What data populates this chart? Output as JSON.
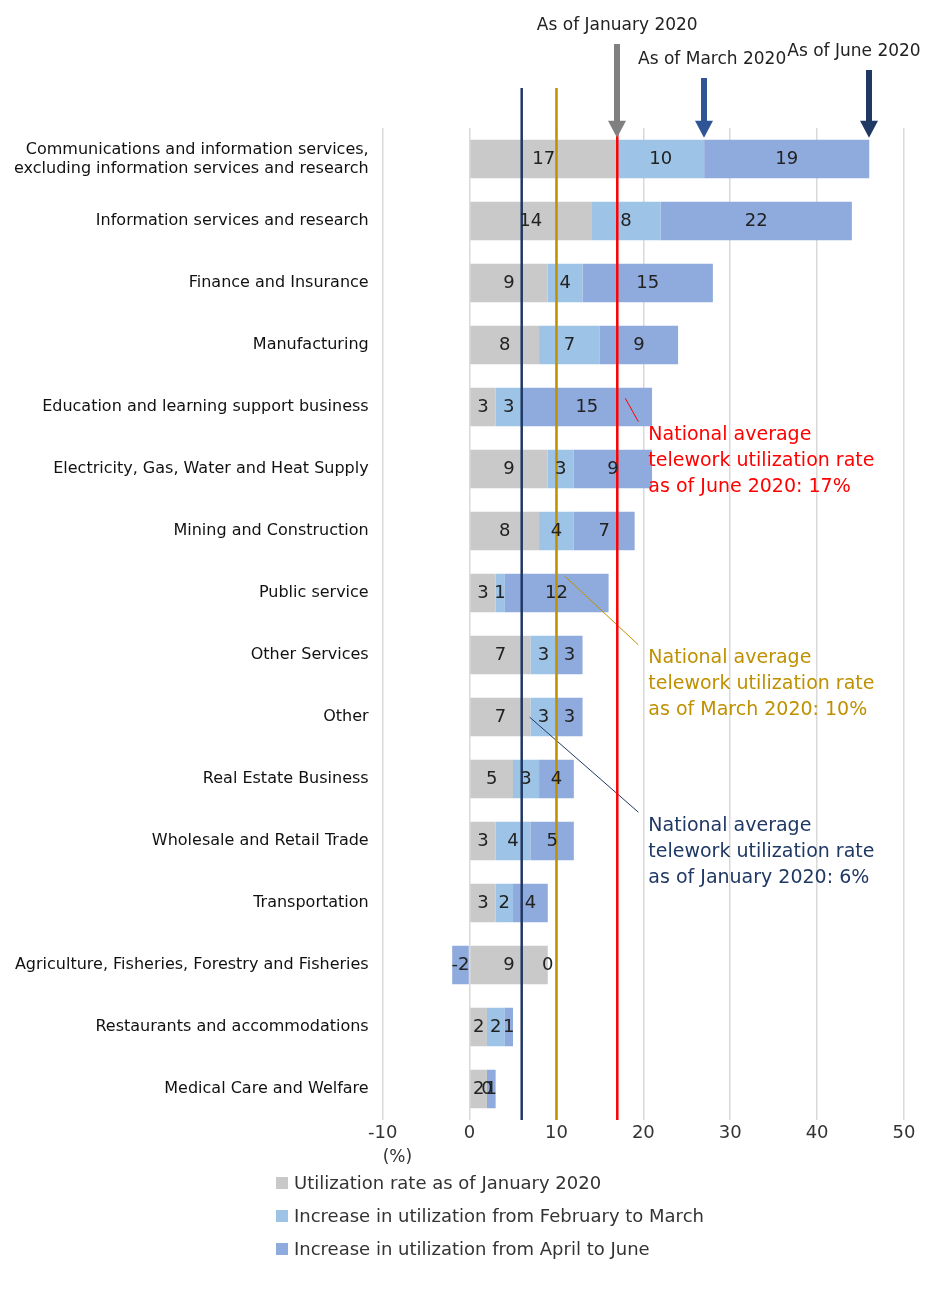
{
  "chart_data": {
    "type": "bar",
    "orientation": "horizontal",
    "stacked": true,
    "data_labels": true,
    "grid": "x",
    "legend": "bottom",
    "xlabel": "(%)",
    "categories": [
      "Communications and information services, excluding information services and research",
      "Information services and research",
      "Finance and Insurance",
      "Manufacturing",
      "Education and learning support business",
      "Electricity, Gas, Water and Heat Supply",
      "Mining and Construction",
      "Public service",
      "Other Services",
      "Other",
      "Real Estate Business",
      "Wholesale and Retail Trade",
      "Transportation",
      "Agriculture, Fisheries, Forestry and Fisheries",
      "Restaurants and accommodations",
      "Medical Care and Welfare"
    ],
    "series": [
      {
        "name": "Utilization rate as of January 2020",
        "color": "#c9c9c9",
        "values": [
          17,
          14,
          9,
          8,
          3,
          9,
          8,
          3,
          7,
          7,
          5,
          3,
          3,
          9,
          2,
          2
        ]
      },
      {
        "name": "Increase in utilization from February to March",
        "color": "#9dc3e6",
        "values": [
          10,
          8,
          4,
          7,
          3,
          3,
          4,
          1,
          3,
          3,
          3,
          4,
          2,
          0,
          2,
          0
        ]
      },
      {
        "name": "Increase in utilization from April to June",
        "color": "#8faadc",
        "values": [
          19,
          22,
          15,
          9,
          15,
          9,
          7,
          12,
          3,
          3,
          4,
          5,
          4,
          -2,
          1,
          1
        ]
      }
    ],
    "xlim": [
      -10,
      50
    ],
    "xticks": [
      -10,
      0,
      10,
      20,
      30,
      40,
      50
    ],
    "ref_lines": [
      {
        "axis": "x",
        "value": 6,
        "label": "National average telework utilization rate as of January 2020: 6%",
        "color": "#203864"
      },
      {
        "axis": "x",
        "value": 10,
        "label": "National average telework utilization rate as of March 2020: 10%",
        "color": "#bf9000"
      },
      {
        "axis": "x",
        "value": 17,
        "label": "National average telework utilization rate as of June 2020: 17%",
        "color": "#ff0000"
      }
    ],
    "annotations": [
      "As of January 2020",
      "As of March 2020",
      "As of June 2020"
    ]
  }
}
